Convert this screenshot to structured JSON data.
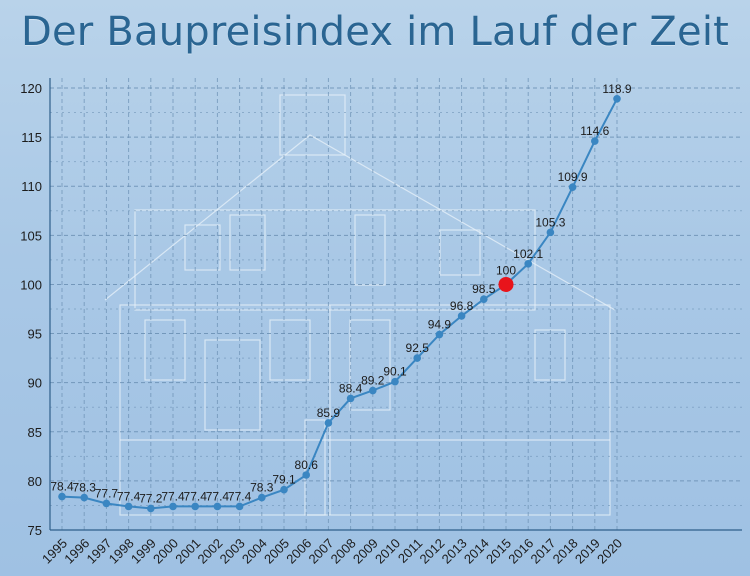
{
  "chart_data": {
    "type": "line",
    "title": "Der Baupreisindex im Lauf der Zeit",
    "xlabel": "",
    "ylabel": "",
    "ylim": [
      75,
      120
    ],
    "yticks": [
      75,
      80,
      85,
      90,
      95,
      100,
      105,
      110,
      115,
      120
    ],
    "grid": true,
    "categories": [
      "1995",
      "1996",
      "1997",
      "1998",
      "1999",
      "2000",
      "2001",
      "2002",
      "2003",
      "2004",
      "2005",
      "2006",
      "2007",
      "2008",
      "2009",
      "2010",
      "2011",
      "2012",
      "2013",
      "2014",
      "2015",
      "2016",
      "2017",
      "2018",
      "2019",
      "2020"
    ],
    "series": [
      {
        "values": [
          78.4,
          78.3,
          77.7,
          77.4,
          77.2,
          77.4,
          77.4,
          77.4,
          77.4,
          78.3,
          79.1,
          80.6,
          85.9,
          88.4,
          89.2,
          90.1,
          92.5,
          94.9,
          96.8,
          98.5,
          100,
          102.1,
          105.3,
          109.9,
          114.6,
          118.9
        ]
      }
    ],
    "data_labels": [
      "78.4",
      "78.3",
      "77.7",
      "77.4",
      "77.2",
      "77.4",
      "77.4",
      "77.4",
      "77.4",
      "78.3",
      "79.1",
      "80.6",
      "85.9",
      "88.4",
      "89.2",
      "90.1",
      "92.5",
      "94.9",
      "96.8",
      "98.5",
      "100",
      "102.1",
      "105.3",
      "109.9",
      "114.6",
      "118.9"
    ],
    "highlight": {
      "category": "2015",
      "value": 100,
      "color": "#e8141b"
    },
    "colors": {
      "line": "#3a86c2",
      "grid": "#6a8fb3",
      "axis": "#2f5f8a"
    }
  }
}
